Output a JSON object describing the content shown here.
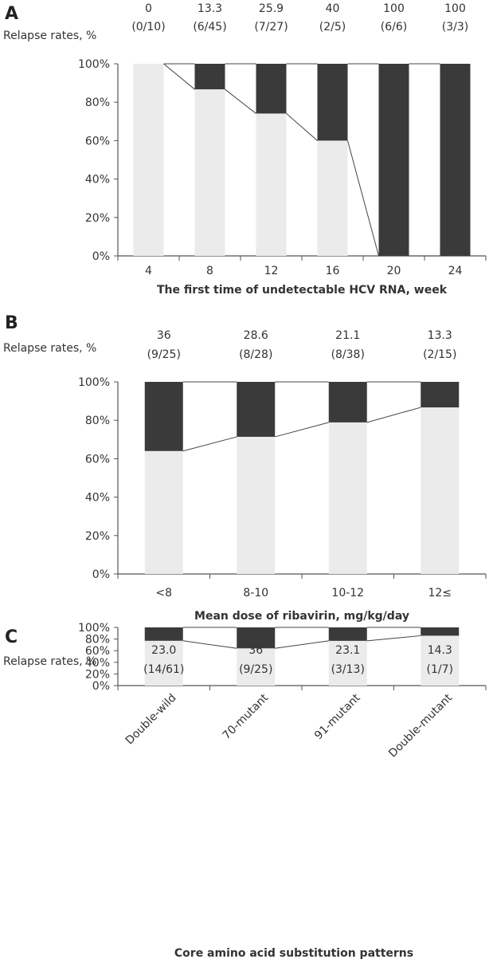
{
  "chart_data": [
    {
      "type": "bar",
      "panel": "A",
      "rate_label": "Relapse rates, %",
      "xlabel": "The first time of undetectable HCV RNA, week",
      "categories": [
        "4",
        "8",
        "12",
        "16",
        "20",
        "24"
      ],
      "rate_values": [
        "0",
        "13.3",
        "25.9",
        "40",
        "100",
        "100"
      ],
      "fractions": [
        "(0/10)",
        "(6/45)",
        "(7/27)",
        "(2/5)",
        "(6/6)",
        "(3/3)"
      ],
      "ylim": [
        0,
        100
      ],
      "yticks": [
        "0%",
        "20%",
        "40%",
        "60%",
        "80%",
        "100%"
      ],
      "series": [
        {
          "name": "",
          "values": [
            100,
            86.7,
            74.1,
            60,
            0,
            0
          ]
        },
        {
          "name": "",
          "values": [
            0,
            13.3,
            25.9,
            40,
            100,
            100
          ]
        }
      ]
    },
    {
      "type": "bar",
      "panel": "B",
      "rate_label": "Relapse rates, %",
      "xlabel": "Mean dose of ribavirin, mg/kg/day",
      "categories": [
        "<8",
        "8-10",
        "10-12",
        "12≤"
      ],
      "rate_values": [
        "36",
        "28.6",
        "21.1",
        "13.3"
      ],
      "fractions": [
        "(9/25)",
        "(8/28)",
        "(8/38)",
        "(2/15)"
      ],
      "ylim": [
        0,
        100
      ],
      "yticks": [
        "0%",
        "20%",
        "40%",
        "60%",
        "80%",
        "100%"
      ],
      "series": [
        {
          "name": "",
          "values": [
            64,
            71.4,
            78.9,
            86.7
          ]
        },
        {
          "name": "",
          "values": [
            36,
            28.6,
            21.1,
            13.3
          ]
        }
      ]
    },
    {
      "type": "bar",
      "panel": "C",
      "rate_label": "Relapse rates, %",
      "xlabel": "Core amino acid substitution patterns",
      "categories": [
        "Double-wild",
        "70-mutant",
        "91-mutant",
        "Double-mutant"
      ],
      "rate_values": [
        "23.0",
        "36",
        "23.1",
        "14.3"
      ],
      "fractions": [
        "(14/61)",
        "(9/25)",
        "(3/13)",
        "(1/7)"
      ],
      "ylim": [
        0,
        100
      ],
      "yticks": [
        "0%",
        "20%",
        "40%",
        "60%",
        "80%",
        "100%"
      ],
      "series": [
        {
          "name": "",
          "values": [
            77,
            64,
            76.9,
            85.7
          ]
        },
        {
          "name": "",
          "values": [
            23,
            36,
            23.1,
            14.3
          ]
        }
      ]
    }
  ],
  "colors": {
    "response_fill": "#ebebeb",
    "relapse_fill": "#3a3a3a",
    "axis": "#555555",
    "line": "#444444"
  }
}
